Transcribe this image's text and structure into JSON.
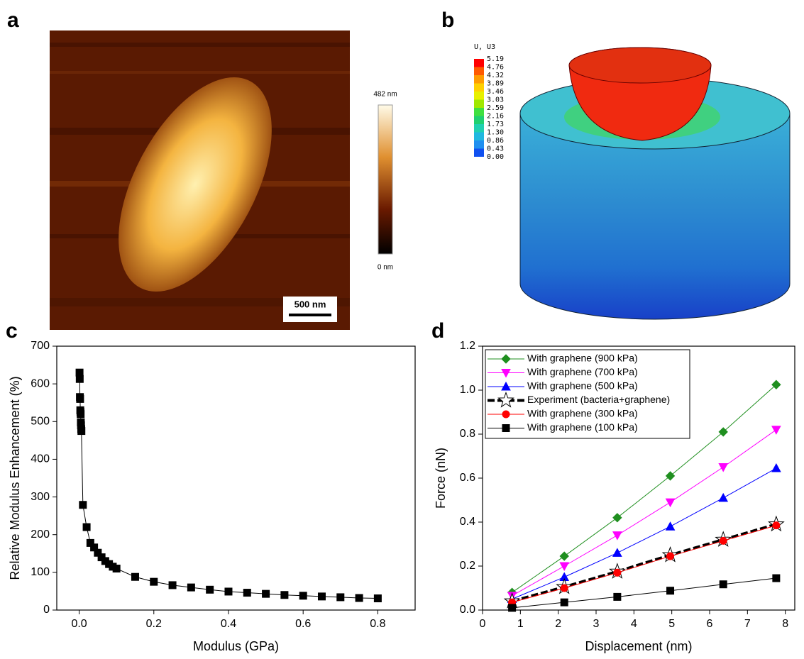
{
  "panel_a": {
    "panel_label": "a",
    "colorbar_max": "482 nm",
    "colorbar_min": "0 nm",
    "scale_bar": "500 nm"
  },
  "panel_b": {
    "panel_label": "b",
    "legend_title": "U, U3",
    "legend_values": [
      "5.19",
      "4.76",
      "4.32",
      "3.89",
      "3.46",
      "3.03",
      "2.59",
      "2.16",
      "1.73",
      "1.30",
      "0.86",
      "0.43",
      "0.00"
    ]
  },
  "chart_data": [
    {
      "type": "line",
      "panel_label": "c",
      "x_label": "Modulus (GPa)",
      "y_label": "Relative Modulus Enhancement (%)",
      "x": [
        0.001,
        0.0015,
        0.002,
        0.0025,
        0.003,
        0.0035,
        0.004,
        0.0045,
        0.005,
        0.0055,
        0.006,
        0.01,
        0.02,
        0.03,
        0.04,
        0.05,
        0.06,
        0.07,
        0.08,
        0.09,
        0.1,
        0.15,
        0.2,
        0.25,
        0.3,
        0.35,
        0.4,
        0.45,
        0.5,
        0.55,
        0.6,
        0.65,
        0.7,
        0.75,
        0.8
      ],
      "series": [
        {
          "color": "#000000",
          "marker": "square",
          "values": [
            630,
            613,
            565,
            560,
            530,
            525,
            520,
            498,
            490,
            480,
            475,
            279,
            220,
            178,
            166,
            152,
            140,
            130,
            122,
            115,
            110,
            88,
            75,
            66,
            60,
            54,
            49,
            46,
            43,
            40,
            38,
            36,
            34,
            32,
            31
          ]
        }
      ],
      "xlim": [
        -0.06,
        0.9
      ],
      "xticks": [
        {
          "value": 0,
          "label": "0.0"
        },
        0.2,
        0.4,
        0.6,
        0.8
      ],
      "ylim": [
        0,
        700
      ],
      "yticks": [
        0,
        100,
        200,
        300,
        400,
        500,
        600,
        700
      ]
    },
    {
      "type": "line",
      "panel_label": "d",
      "x_label": "Displacement (nm)",
      "y_label": "Force (nN)",
      "legend": "upper left",
      "x": [
        0.78,
        2.16,
        3.56,
        4.96,
        6.36,
        7.76
      ],
      "series": [
        {
          "name": "With graphene (900 kPa)",
          "color": "#1f8f1f",
          "marker": "diamond",
          "values": [
            0.08,
            0.245,
            0.42,
            0.61,
            0.81,
            1.025
          ]
        },
        {
          "name": "With graphene (700 kPa)",
          "color": "#ff00ff",
          "marker": "triangle-down",
          "values": [
            0.065,
            0.2,
            0.34,
            0.49,
            0.65,
            0.82
          ]
        },
        {
          "name": "With graphene (500 kPa)",
          "color": "#0000ff",
          "marker": "triangle-up",
          "values": [
            0.05,
            0.15,
            0.26,
            0.38,
            0.51,
            0.645
          ]
        },
        {
          "name": "Experiment (bacteria+graphene)",
          "color": "#000000",
          "marker": "star",
          "dashed": true,
          "values": [
            0.04,
            0.105,
            0.175,
            0.25,
            0.32,
            0.39
          ]
        },
        {
          "name": "With graphene (300 kPa)",
          "color": "#ff0000",
          "marker": "circle",
          "values": [
            0.035,
            0.1,
            0.17,
            0.245,
            0.315,
            0.385
          ]
        },
        {
          "name": "With graphene (100 kPa)",
          "color": "#000000",
          "marker": "square",
          "values": [
            0.01,
            0.035,
            0.06,
            0.088,
            0.117,
            0.145
          ]
        }
      ],
      "xlim": [
        0,
        8.25
      ],
      "xticks": [
        0,
        1,
        2,
        3,
        4,
        5,
        6,
        7,
        8
      ],
      "ylim": [
        0,
        1.2
      ],
      "yticks": [
        {
          "value": 0,
          "label": "0.0"
        },
        0.2,
        0.4,
        0.6,
        0.8,
        {
          "value": 1,
          "label": "1.0"
        },
        1.2
      ]
    }
  ]
}
